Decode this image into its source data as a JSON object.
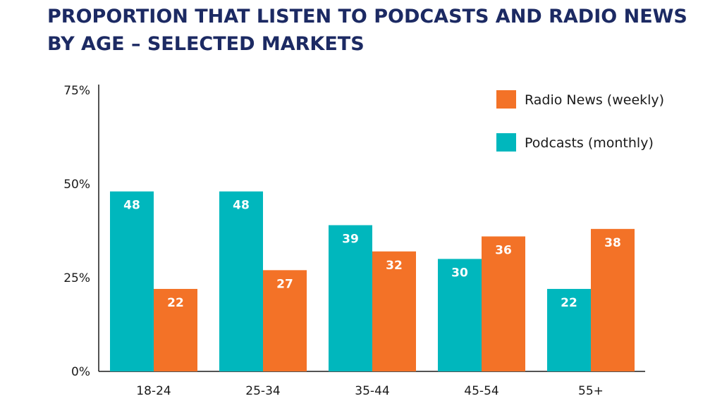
{
  "chart_data": {
    "type": "bar",
    "title_lines": [
      "PROPORTION THAT LISTEN TO PODCASTS AND RADIO NEWS",
      "BY AGE – SELECTED MARKETS"
    ],
    "categories": [
      "18-24",
      "25-34",
      "35-44",
      "45-54",
      "55+"
    ],
    "series": [
      {
        "name": "Podcasts (monthly)",
        "color": "#00b7bd",
        "values": [
          48,
          48,
          39,
          30,
          22
        ]
      },
      {
        "name": "Radio News (weekly)",
        "color": "#f37227",
        "values": [
          22,
          27,
          32,
          36,
          38
        ]
      }
    ],
    "yticks": [
      "0%",
      "25%",
      "50%",
      "75%"
    ],
    "ylim": [
      0,
      75
    ],
    "grid": false,
    "legend": {
      "placement": "top-right",
      "order": [
        "Radio News (weekly)",
        "Podcasts (monthly)"
      ]
    },
    "colors": {
      "title": "#1c2a63",
      "axis": "#1a1a1a"
    }
  }
}
